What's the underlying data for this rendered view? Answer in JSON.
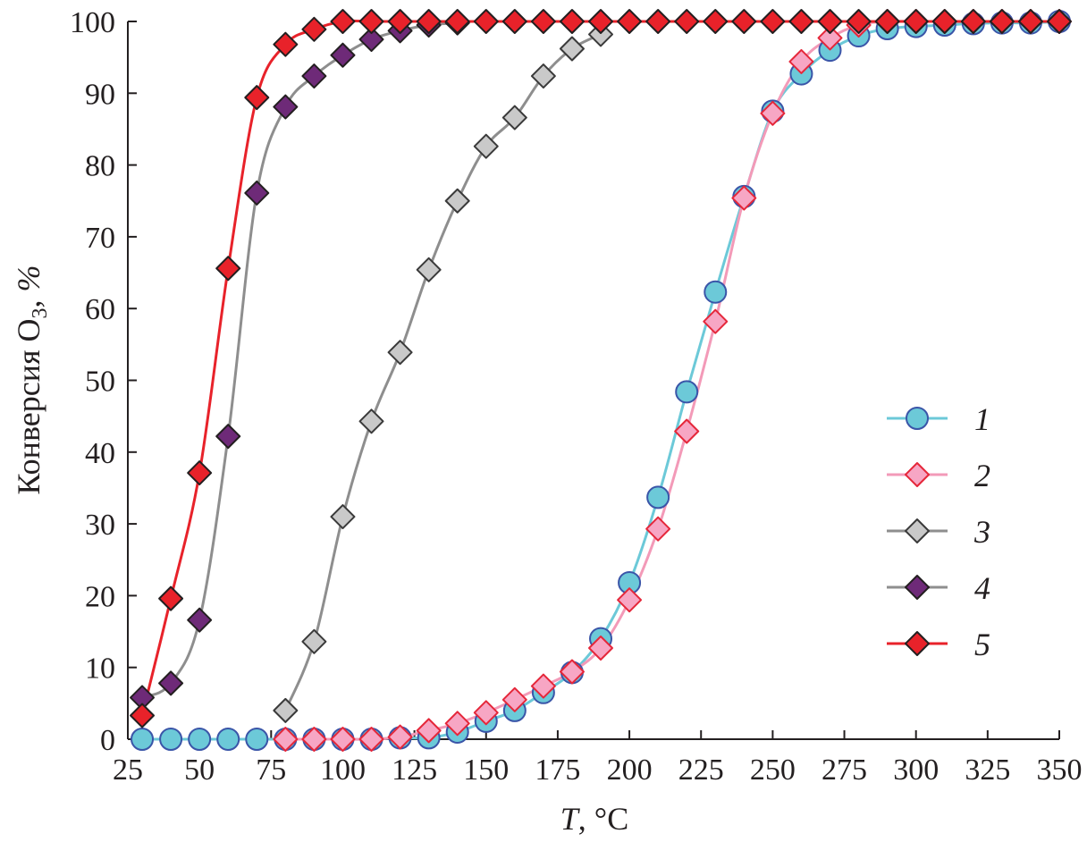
{
  "chart_data": {
    "type": "line",
    "title": "",
    "xlabel_italic": "T",
    "xlabel_rest": ", °C",
    "ylabel_main": "Конверсия O",
    "ylabel_sub": "3",
    "ylabel_rest": ", ",
    "ylabel_unit": "%",
    "xlim": [
      25,
      350
    ],
    "ylim": [
      0,
      100
    ],
    "xticks": [
      25,
      50,
      75,
      100,
      125,
      150,
      175,
      200,
      225,
      250,
      275,
      300,
      325,
      350
    ],
    "yticks": [
      0,
      10,
      20,
      30,
      40,
      50,
      60,
      70,
      80,
      90,
      100
    ],
    "legend_position": "right-middle",
    "series": [
      {
        "name": "1",
        "marker": "circle",
        "line_color": "#6cc9d8",
        "fill": "#6cc9d8",
        "edge": "#3a55a8",
        "x": [
          30,
          40,
          50,
          60,
          70,
          80,
          90,
          100,
          110,
          120,
          130,
          140,
          150,
          160,
          170,
          180,
          190,
          200,
          210,
          220,
          230,
          240,
          250,
          260,
          270,
          280,
          290,
          300,
          310,
          320,
          330,
          340,
          350
        ],
        "y": [
          0,
          0,
          0,
          0,
          0,
          0,
          0,
          0,
          0,
          0.2,
          0.2,
          1,
          2.5,
          4,
          6.5,
          9.3,
          14,
          21.8,
          33.7,
          48.4,
          62.3,
          75.6,
          87.5,
          92.7,
          96,
          98,
          99,
          99.3,
          99.5,
          99.7,
          99.8,
          99.8,
          100
        ]
      },
      {
        "name": "2",
        "marker": "diamond",
        "line_color": "#f39ab8",
        "fill": "#f7a6c4",
        "edge": "#e5273a",
        "x": [
          80,
          90,
          100,
          110,
          120,
          130,
          140,
          150,
          160,
          170,
          180,
          190,
          200,
          210,
          220,
          230,
          240,
          250,
          260,
          270,
          280,
          290,
          300,
          310,
          320,
          330,
          340,
          350
        ],
        "y": [
          0,
          0,
          0,
          0,
          0.3,
          1.2,
          2.2,
          3.7,
          5.5,
          7.4,
          9.4,
          12.7,
          19.4,
          29.3,
          42.9,
          58.2,
          75.4,
          87.2,
          94.4,
          97.7,
          99.5,
          100,
          100,
          100,
          100,
          100,
          100,
          100
        ]
      },
      {
        "name": "3",
        "marker": "diamond",
        "line_color": "#8e8e8e",
        "fill": "#c9c9c9",
        "edge": "#3a3a3a",
        "x": [
          80,
          90,
          100,
          110,
          120,
          130,
          140,
          150,
          160,
          170,
          180,
          190
        ],
        "y": [
          4,
          13.6,
          31,
          44.3,
          53.9,
          65.4,
          75,
          82.6,
          86.6,
          92.4,
          96.2,
          98.2
        ]
      },
      {
        "name": "4",
        "marker": "diamond",
        "line_color": "#8e8e8e",
        "fill": "#6e2a78",
        "edge": "#231f20",
        "x": [
          30,
          40,
          50,
          60,
          70,
          80,
          90,
          100,
          110,
          120,
          130,
          140
        ],
        "y": [
          5.8,
          7.8,
          16.6,
          42.2,
          76.1,
          88.1,
          92.4,
          95.3,
          97.5,
          98.7,
          99.5,
          99.8
        ]
      },
      {
        "name": "5",
        "marker": "diamond",
        "line_color": "#e8222a",
        "fill": "#e8222a",
        "edge": "#231f20",
        "x": [
          30,
          40,
          50,
          60,
          70,
          80,
          90,
          100,
          110,
          120,
          130,
          140,
          150,
          160,
          170,
          180,
          190,
          200,
          210,
          220,
          230,
          240,
          250,
          260,
          270,
          280,
          290,
          300,
          310,
          320,
          330,
          340,
          350
        ],
        "y": [
          3.3,
          19.6,
          37.1,
          65.6,
          89.4,
          96.8,
          98.9,
          100,
          100,
          100,
          100,
          100,
          100,
          100,
          100,
          100,
          100,
          100,
          100,
          100,
          100,
          100,
          100,
          100,
          100,
          100,
          100,
          100,
          100,
          100,
          100,
          100,
          100
        ]
      }
    ]
  }
}
